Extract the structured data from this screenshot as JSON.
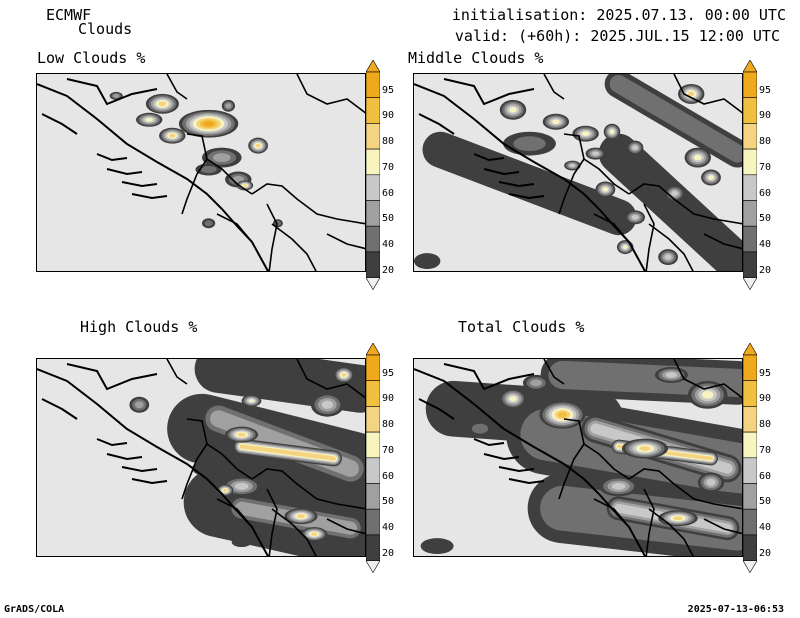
{
  "header": {
    "model": "ECMWF",
    "field": "Clouds",
    "init": "initialisation: 2025.07.13. 00:00 UTC",
    "valid": "valid: (+60h): 2025.JUL.15 12:00 UTC"
  },
  "footer": {
    "left": "GrADS/COLA",
    "right": "2025-07-13-06:53"
  },
  "colorbar": {
    "levels": [
      "20",
      "40",
      "50",
      "60",
      "70",
      "80",
      "90",
      "95"
    ],
    "colors": [
      "#3f3f3f",
      "#707070",
      "#a0a0a0",
      "#c8c8c8",
      "#f8f4c0",
      "#f4d480",
      "#f2c040",
      "#f0a81c"
    ],
    "below_color": "#f0f0f0",
    "above_color": "#f0a81c",
    "background": "#e6e6e6"
  },
  "chart_data": [
    {
      "type": "heatmap",
      "title": "Low Clouds %",
      "legend_levels": [
        20,
        40,
        50,
        60,
        70,
        80,
        90,
        95
      ],
      "features": [
        {
          "type": "blob",
          "x": 0.52,
          "y": 0.25,
          "rx": 0.09,
          "ry": 0.07,
          "level": 8
        },
        {
          "type": "blob",
          "x": 0.38,
          "y": 0.15,
          "rx": 0.05,
          "ry": 0.05,
          "level": 6
        },
        {
          "type": "blob",
          "x": 0.34,
          "y": 0.23,
          "rx": 0.04,
          "ry": 0.035,
          "level": 5
        },
        {
          "type": "blob",
          "x": 0.41,
          "y": 0.31,
          "rx": 0.04,
          "ry": 0.04,
          "level": 6
        },
        {
          "type": "blob",
          "x": 0.67,
          "y": 0.36,
          "rx": 0.03,
          "ry": 0.04,
          "level": 6
        },
        {
          "type": "blob",
          "x": 0.56,
          "y": 0.42,
          "rx": 0.06,
          "ry": 0.05,
          "level": 3
        },
        {
          "type": "blob",
          "x": 0.61,
          "y": 0.53,
          "rx": 0.04,
          "ry": 0.04,
          "level": 3
        },
        {
          "type": "blob",
          "x": 0.63,
          "y": 0.56,
          "rx": 0.025,
          "ry": 0.025,
          "level": 6
        },
        {
          "type": "blob",
          "x": 0.52,
          "y": 0.48,
          "rx": 0.04,
          "ry": 0.03,
          "level": 2
        },
        {
          "type": "blob",
          "x": 0.24,
          "y": 0.11,
          "rx": 0.02,
          "ry": 0.02,
          "level": 3
        },
        {
          "type": "blob",
          "x": 0.58,
          "y": 0.16,
          "rx": 0.02,
          "ry": 0.03,
          "level": 3
        },
        {
          "type": "blob",
          "x": 0.52,
          "y": 0.75,
          "rx": 0.02,
          "ry": 0.025,
          "level": 2
        },
        {
          "type": "blob",
          "x": 0.73,
          "y": 0.75,
          "rx": 0.015,
          "ry": 0.02,
          "level": 2
        }
      ]
    },
    {
      "type": "heatmap",
      "title": "Middle Clouds %",
      "legend_levels": [
        20,
        40,
        50,
        60,
        70,
        80,
        90,
        95
      ],
      "features": [
        {
          "type": "band",
          "x1": 0.08,
          "y1": 0.38,
          "x2": 0.62,
          "y2": 0.72,
          "width": 0.18,
          "level": 1
        },
        {
          "type": "band",
          "x1": 0.62,
          "y1": 0.4,
          "x2": 0.98,
          "y2": 0.95,
          "width": 0.2,
          "level": 1
        },
        {
          "type": "band",
          "x1": 0.62,
          "y1": 0.05,
          "x2": 0.98,
          "y2": 0.4,
          "width": 0.14,
          "level": 2
        },
        {
          "type": "blob",
          "x": 0.35,
          "y": 0.35,
          "rx": 0.08,
          "ry": 0.06,
          "level": 2
        },
        {
          "type": "blob",
          "x": 0.3,
          "y": 0.18,
          "rx": 0.04,
          "ry": 0.05,
          "level": 5
        },
        {
          "type": "blob",
          "x": 0.43,
          "y": 0.24,
          "rx": 0.04,
          "ry": 0.04,
          "level": 5
        },
        {
          "type": "blob",
          "x": 0.52,
          "y": 0.3,
          "rx": 0.04,
          "ry": 0.04,
          "level": 5
        },
        {
          "type": "blob",
          "x": 0.6,
          "y": 0.29,
          "rx": 0.025,
          "ry": 0.04,
          "level": 5
        },
        {
          "type": "blob",
          "x": 0.84,
          "y": 0.1,
          "rx": 0.04,
          "ry": 0.05,
          "level": 6
        },
        {
          "type": "blob",
          "x": 0.86,
          "y": 0.42,
          "rx": 0.04,
          "ry": 0.05,
          "level": 5
        },
        {
          "type": "blob",
          "x": 0.9,
          "y": 0.52,
          "rx": 0.03,
          "ry": 0.04,
          "level": 5
        },
        {
          "type": "blob",
          "x": 0.79,
          "y": 0.6,
          "rx": 0.03,
          "ry": 0.04,
          "level": 4
        },
        {
          "type": "blob",
          "x": 0.58,
          "y": 0.58,
          "rx": 0.03,
          "ry": 0.04,
          "level": 5
        },
        {
          "type": "blob",
          "x": 0.67,
          "y": 0.72,
          "rx": 0.03,
          "ry": 0.035,
          "level": 4
        },
        {
          "type": "blob",
          "x": 0.64,
          "y": 0.87,
          "rx": 0.025,
          "ry": 0.035,
          "level": 5
        },
        {
          "type": "blob",
          "x": 0.77,
          "y": 0.92,
          "rx": 0.03,
          "ry": 0.04,
          "level": 4
        },
        {
          "type": "blob",
          "x": 0.55,
          "y": 0.4,
          "rx": 0.03,
          "ry": 0.03,
          "level": 4
        },
        {
          "type": "blob",
          "x": 0.48,
          "y": 0.46,
          "rx": 0.025,
          "ry": 0.025,
          "level": 4
        },
        {
          "type": "blob",
          "x": 0.67,
          "y": 0.37,
          "rx": 0.025,
          "ry": 0.035,
          "level": 4
        },
        {
          "type": "blob",
          "x": 0.04,
          "y": 0.94,
          "rx": 0.04,
          "ry": 0.04,
          "level": 1
        }
      ]
    },
    {
      "type": "heatmap",
      "title": "High Clouds %",
      "legend_levels": [
        20,
        40,
        50,
        60,
        70,
        80,
        90,
        95
      ],
      "features": [
        {
          "type": "band",
          "x1": 0.55,
          "y1": 0.05,
          "x2": 0.98,
          "y2": 0.15,
          "width": 0.24,
          "level": 1
        },
        {
          "type": "band",
          "x1": 0.5,
          "y1": 0.35,
          "x2": 0.98,
          "y2": 0.55,
          "width": 0.35,
          "level": 1
        },
        {
          "type": "band",
          "x1": 0.55,
          "y1": 0.72,
          "x2": 0.98,
          "y2": 0.88,
          "width": 0.35,
          "level": 1
        },
        {
          "type": "band",
          "x1": 0.55,
          "y1": 0.3,
          "x2": 0.95,
          "y2": 0.55,
          "width": 0.18,
          "level": 3
        },
        {
          "type": "band",
          "x1": 0.62,
          "y1": 0.44,
          "x2": 0.9,
          "y2": 0.5,
          "width": 0.08,
          "level": 6
        },
        {
          "type": "band",
          "x1": 0.62,
          "y1": 0.75,
          "x2": 0.95,
          "y2": 0.85,
          "width": 0.14,
          "level": 3
        },
        {
          "type": "blob",
          "x": 0.62,
          "y": 0.38,
          "rx": 0.05,
          "ry": 0.04,
          "level": 6
        },
        {
          "type": "blob",
          "x": 0.88,
          "y": 0.23,
          "rx": 0.05,
          "ry": 0.06,
          "level": 4
        },
        {
          "type": "blob",
          "x": 0.93,
          "y": 0.08,
          "rx": 0.03,
          "ry": 0.04,
          "level": 6
        },
        {
          "type": "blob",
          "x": 0.62,
          "y": 0.64,
          "rx": 0.06,
          "ry": 0.05,
          "level": 4
        },
        {
          "type": "blob",
          "x": 0.57,
          "y": 0.66,
          "rx": 0.025,
          "ry": 0.03,
          "level": 6
        },
        {
          "type": "blob",
          "x": 0.8,
          "y": 0.79,
          "rx": 0.05,
          "ry": 0.04,
          "level": 6
        },
        {
          "type": "blob",
          "x": 0.84,
          "y": 0.88,
          "rx": 0.04,
          "ry": 0.035,
          "level": 6
        },
        {
          "type": "blob",
          "x": 0.65,
          "y": 0.21,
          "rx": 0.03,
          "ry": 0.03,
          "level": 5
        },
        {
          "type": "blob",
          "x": 0.31,
          "y": 0.23,
          "rx": 0.03,
          "ry": 0.04,
          "level": 3
        },
        {
          "type": "blob",
          "x": 0.52,
          "y": 0.55,
          "rx": 0.05,
          "ry": 0.04,
          "level": 1
        },
        {
          "type": "blob",
          "x": 0.52,
          "y": 0.82,
          "rx": 0.03,
          "ry": 0.03,
          "level": 1
        },
        {
          "type": "blob",
          "x": 0.62,
          "y": 0.92,
          "rx": 0.03,
          "ry": 0.025,
          "level": 1
        }
      ]
    },
    {
      "type": "heatmap",
      "title": "Total Clouds %",
      "legend_levels": [
        20,
        40,
        50,
        60,
        70,
        80,
        90,
        95
      ],
      "features": [
        {
          "type": "band",
          "x1": 0.12,
          "y1": 0.25,
          "x2": 0.55,
          "y2": 0.3,
          "width": 0.28,
          "level": 1
        },
        {
          "type": "band",
          "x1": 0.45,
          "y1": 0.08,
          "x2": 0.98,
          "y2": 0.12,
          "width": 0.22,
          "level": 2
        },
        {
          "type": "band",
          "x1": 0.4,
          "y1": 0.38,
          "x2": 0.98,
          "y2": 0.55,
          "width": 0.4,
          "level": 2
        },
        {
          "type": "band",
          "x1": 0.45,
          "y1": 0.75,
          "x2": 0.98,
          "y2": 0.85,
          "width": 0.35,
          "level": 2
        },
        {
          "type": "band",
          "x1": 0.55,
          "y1": 0.35,
          "x2": 0.95,
          "y2": 0.55,
          "width": 0.14,
          "level": 4
        },
        {
          "type": "band",
          "x1": 0.62,
          "y1": 0.44,
          "x2": 0.9,
          "y2": 0.5,
          "width": 0.07,
          "level": 6
        },
        {
          "type": "band",
          "x1": 0.62,
          "y1": 0.75,
          "x2": 0.95,
          "y2": 0.85,
          "width": 0.12,
          "level": 4
        },
        {
          "type": "blob",
          "x": 0.45,
          "y": 0.28,
          "rx": 0.07,
          "ry": 0.07,
          "level": 7
        },
        {
          "type": "blob",
          "x": 0.3,
          "y": 0.2,
          "rx": 0.04,
          "ry": 0.05,
          "level": 5
        },
        {
          "type": "blob",
          "x": 0.89,
          "y": 0.18,
          "rx": 0.06,
          "ry": 0.07,
          "level": 5
        },
        {
          "type": "blob",
          "x": 0.78,
          "y": 0.08,
          "rx": 0.05,
          "ry": 0.04,
          "level": 4
        },
        {
          "type": "blob",
          "x": 0.7,
          "y": 0.45,
          "rx": 0.07,
          "ry": 0.05,
          "level": 6
        },
        {
          "type": "blob",
          "x": 0.62,
          "y": 0.64,
          "rx": 0.06,
          "ry": 0.05,
          "level": 4
        },
        {
          "type": "blob",
          "x": 0.8,
          "y": 0.8,
          "rx": 0.06,
          "ry": 0.04,
          "level": 6
        },
        {
          "type": "blob",
          "x": 0.9,
          "y": 0.62,
          "rx": 0.04,
          "ry": 0.05,
          "level": 4
        },
        {
          "type": "blob",
          "x": 0.37,
          "y": 0.12,
          "rx": 0.04,
          "ry": 0.04,
          "level": 3
        },
        {
          "type": "blob",
          "x": 0.07,
          "y": 0.94,
          "rx": 0.05,
          "ry": 0.04,
          "level": 1
        },
        {
          "type": "blob",
          "x": 0.2,
          "y": 0.35,
          "rx": 0.04,
          "ry": 0.04,
          "level": 2
        }
      ]
    }
  ]
}
